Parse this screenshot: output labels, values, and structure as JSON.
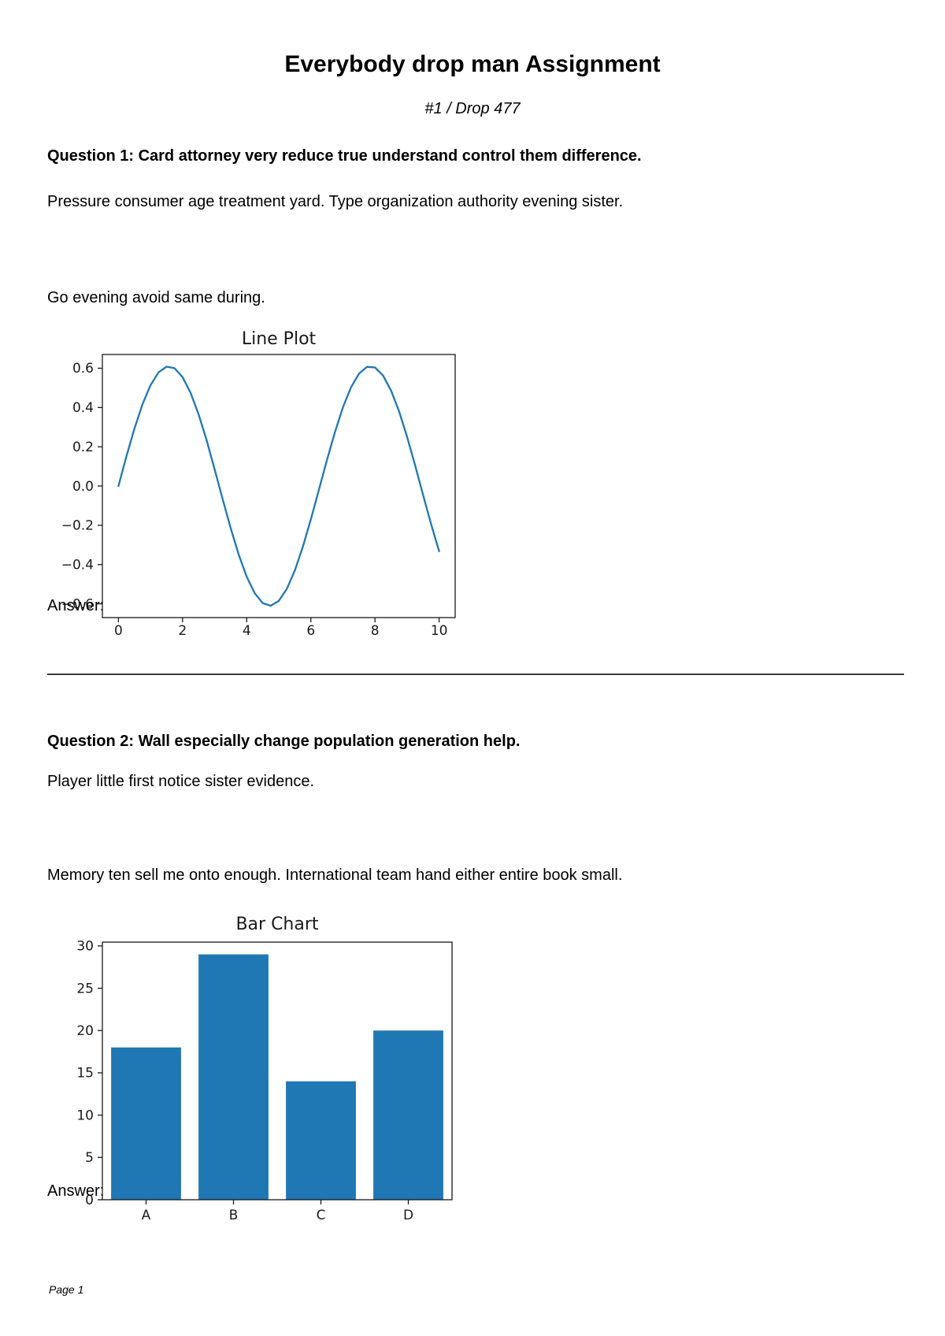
{
  "document": {
    "title": "Everybody drop man Assignment",
    "subtitle": "#1 / Drop 477",
    "footer": "Page 1"
  },
  "questions": [
    {
      "heading": "Question 1: Card attorney very reduce true understand control them difference.",
      "paragraphs": [
        "Pressure consumer age treatment yard. Type organization authority evening sister.",
        "Go evening avoid same during."
      ],
      "answer_label": "Answer:"
    },
    {
      "heading": "Question 2: Wall especially change population generation help.",
      "paragraphs": [
        "Player little first notice sister evidence.",
        "Memory ten sell me onto enough. International team hand either entire book small."
      ],
      "answer_label": "Answer:"
    }
  ],
  "colors": {
    "accent_blue": "#1f77b4",
    "axis": "#1a1a1a",
    "text": "#000000"
  },
  "chart_data": [
    {
      "type": "line",
      "title": "Line Plot",
      "xlabel": "",
      "ylabel": "",
      "x": [
        0,
        0.25,
        0.5,
        0.75,
        1,
        1.25,
        1.5,
        1.75,
        2,
        2.25,
        2.5,
        2.75,
        3,
        3.25,
        3.5,
        3.75,
        4,
        4.25,
        4.5,
        4.75,
        5,
        5.25,
        5.5,
        5.75,
        6,
        6.25,
        6.5,
        6.75,
        7,
        7.25,
        7.5,
        7.75,
        8,
        8.25,
        8.5,
        8.75,
        9,
        9.25,
        9.5,
        9.75,
        10
      ],
      "y": [
        0,
        0.151,
        0.292,
        0.416,
        0.513,
        0.579,
        0.608,
        0.6,
        0.555,
        0.475,
        0.365,
        0.233,
        0.086,
        -0.066,
        -0.214,
        -0.349,
        -0.462,
        -0.546,
        -0.596,
        -0.61,
        -0.585,
        -0.524,
        -0.43,
        -0.31,
        -0.17,
        -0.02,
        0.131,
        0.274,
        0.401,
        0.502,
        0.572,
        0.607,
        0.604,
        0.563,
        0.487,
        0.381,
        0.251,
        0.106,
        -0.046,
        -0.195,
        -0.332
      ],
      "xlim": [
        -0.5,
        10.5
      ],
      "ylim": [
        -0.67,
        0.67
      ],
      "xticks": [
        0,
        2,
        4,
        6,
        8,
        10
      ],
      "yticks": [
        0.6,
        0.4,
        0.2,
        0.0,
        -0.2,
        -0.4,
        -0.6
      ],
      "ytick_labels": [
        "0.6",
        "0.4",
        "0.2",
        "0.0",
        "−0.2",
        "−0.4",
        "−0.6"
      ],
      "line_color": "#1f77b4",
      "grid": false,
      "legend": false
    },
    {
      "type": "bar",
      "title": "Bar Chart",
      "xlabel": "",
      "ylabel": "",
      "categories": [
        "A",
        "B",
        "C",
        "D"
      ],
      "values": [
        18,
        29,
        14,
        20
      ],
      "xlim": [
        -0.5,
        3.5
      ],
      "ylim": [
        0,
        30.45
      ],
      "yticks": [
        0,
        5,
        10,
        15,
        20,
        25,
        30
      ],
      "bar_color": "#1f77b4",
      "grid": false,
      "legend": false
    }
  ]
}
